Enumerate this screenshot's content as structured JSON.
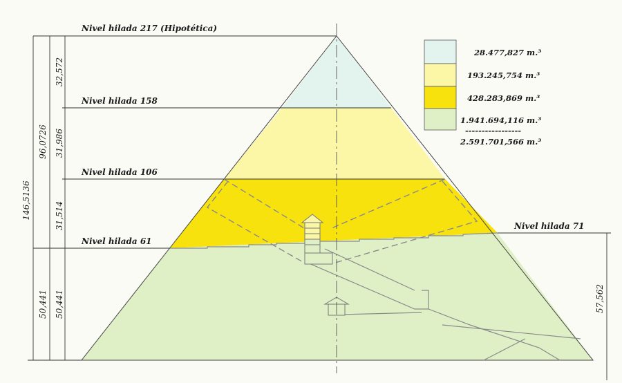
{
  "levels": {
    "top": "Nivel hilada 217 (Hipotética)",
    "l158": "Nivel hilada 158",
    "l106": "Nivel hilada 106",
    "l61": "Nivel hilada 61",
    "l71": "Nivel hilada 71"
  },
  "dimensions": {
    "total": "146,5136",
    "upper": "96,0726",
    "seg_top": "32,572",
    "seg_mid": "31,986",
    "seg_low": "31,514",
    "base_outer": "50,441",
    "base_inner": "50,441",
    "right": "57,562"
  },
  "legend": [
    {
      "color": "#e3f4ee",
      "value": "28.477,827 m.³"
    },
    {
      "color": "#fbf7a6",
      "value": "193.245,754 m.³"
    },
    {
      "color": "#f7e20e",
      "value": "428.283,869 m.³"
    },
    {
      "color": "#dff0c6",
      "value": "1.941.694,116 m.³"
    }
  ],
  "legend_separator": "-----------------",
  "legend_total": "2.591.701,566 m.³",
  "colors": {
    "apex": "#e3f4ee",
    "upper": "#fbf7a6",
    "middle": "#f7e20e",
    "base": "#dff0c6"
  }
}
